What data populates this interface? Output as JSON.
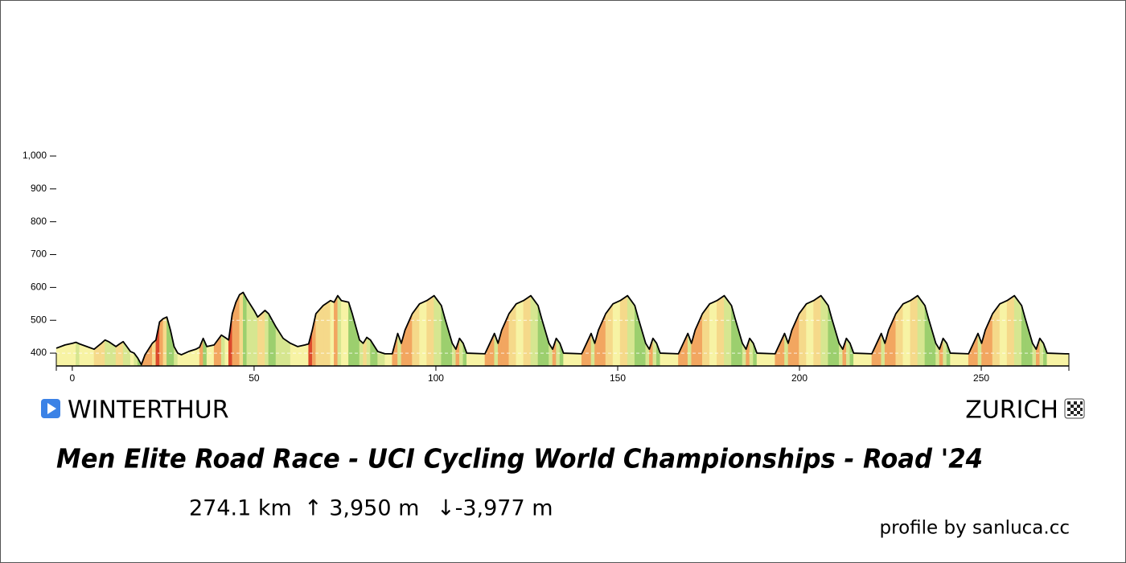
{
  "chart_data": {
    "type": "area",
    "title": "Men Elite Road Race - UCI Cycling World Championships - Road '24",
    "x": [
      -4.4,
      -2,
      0,
      1,
      2,
      4,
      6,
      8,
      9,
      10,
      12,
      13,
      14,
      15,
      16,
      17,
      18,
      19,
      20,
      22,
      23,
      24,
      25,
      26,
      27,
      28,
      29,
      30,
      32,
      34,
      35,
      36,
      37,
      39,
      41,
      42,
      43,
      44,
      45,
      46,
      47,
      48,
      50,
      51,
      52,
      53,
      54,
      56,
      58,
      60,
      62,
      64,
      65,
      66,
      67,
      69,
      71,
      72,
      73,
      74,
      76,
      77,
      79,
      80,
      81,
      82,
      84,
      86,
      88,
      89.5,
      90.5,
      91.5,
      93.5,
      95.5,
      97.5,
      99.5,
      100.5,
      101.5,
      102.5,
      104.5,
      105.5,
      106.5,
      107.5,
      108.5,
      113.5,
      116.1,
      117.1,
      118.1,
      120.1,
      122.1,
      124.1,
      126.1,
      127.1,
      128.1,
      129.1,
      131.1,
      132.1,
      133.1,
      134.1,
      135.1,
      140.1,
      142.7,
      143.7,
      144.7,
      146.7,
      148.7,
      150.7,
      152.7,
      153.7,
      154.7,
      155.7,
      157.7,
      158.7,
      159.7,
      160.7,
      161.7,
      166.7,
      169.3,
      170.3,
      171.3,
      173.3,
      175.3,
      177.3,
      179.3,
      180.3,
      181.3,
      182.3,
      184.3,
      185.3,
      186.3,
      187.3,
      188.3,
      193.3,
      195.9,
      196.9,
      197.9,
      199.9,
      201.9,
      203.9,
      205.9,
      206.9,
      207.9,
      208.9,
      210.9,
      211.9,
      212.9,
      213.9,
      214.9,
      219.9,
      222.5,
      223.5,
      224.5,
      226.5,
      228.5,
      230.5,
      232.5,
      233.5,
      234.5,
      235.5,
      237.5,
      238.5,
      239.5,
      240.5,
      241.5,
      246.5,
      249.1,
      250.1,
      251.1,
      253.1,
      255.1,
      257.1,
      259.1,
      260.1,
      261.1,
      262.1,
      264.1,
      265.1,
      266.1,
      267.1,
      268.1,
      273.1,
      274.1
    ],
    "values": [
      415,
      425,
      430,
      433,
      428,
      420,
      412,
      430,
      440,
      435,
      420,
      428,
      435,
      420,
      405,
      400,
      385,
      365,
      395,
      430,
      440,
      495,
      505,
      510,
      470,
      420,
      400,
      395,
      405,
      412,
      418,
      445,
      420,
      425,
      455,
      448,
      440,
      520,
      555,
      578,
      585,
      565,
      530,
      510,
      520,
      530,
      520,
      480,
      445,
      430,
      420,
      425,
      428,
      470,
      520,
      545,
      560,
      555,
      575,
      560,
      555,
      520,
      440,
      430,
      448,
      440,
      405,
      398,
      398,
      460,
      430,
      470,
      520,
      550,
      560,
      575,
      560,
      545,
      505,
      430,
      412,
      445,
      430,
      400,
      398,
      460,
      430,
      470,
      520,
      550,
      560,
      575,
      560,
      545,
      505,
      430,
      412,
      445,
      430,
      400,
      398,
      460,
      430,
      470,
      520,
      550,
      560,
      575,
      560,
      545,
      505,
      430,
      412,
      445,
      430,
      400,
      398,
      460,
      430,
      470,
      520,
      550,
      560,
      575,
      560,
      545,
      505,
      430,
      412,
      445,
      430,
      400,
      398,
      460,
      430,
      470,
      520,
      550,
      560,
      575,
      560,
      545,
      505,
      430,
      412,
      445,
      430,
      400,
      398,
      460,
      430,
      470,
      520,
      550,
      560,
      575,
      560,
      545,
      505,
      430,
      412,
      445,
      430,
      400,
      398,
      460,
      430,
      470,
      520,
      550,
      560,
      575,
      560,
      545,
      505,
      430,
      412,
      445,
      430,
      400,
      398,
      398
    ],
    "segment_colors": [
      "#f7f3a4",
      "#f7f3a4",
      "#f7f3a4",
      "#d6e690",
      "#f7f3a4",
      "#f7f3a4",
      "#f5d98a",
      "#f5d98a",
      "#d6e690",
      "#d6e690",
      "#f5d98a",
      "#f5d98a",
      "#d6e690",
      "#d6e690",
      "#f7f3a4",
      "#d6e690",
      "#9ccf6e",
      "#f2a660",
      "#f2a660",
      "#f5d98a",
      "#dc4a2c",
      "#f2a660",
      "#f5d98a",
      "#9ccf6e",
      "#9ccf6e",
      "#d6e690",
      "#f7f3a4",
      "#f7f3a4",
      "#f7f3a4",
      "#f7f3a4",
      "#f2a660",
      "#9ccf6e",
      "#f7f3a4",
      "#f2a660",
      "#d6e690",
      "#f7f3a4",
      "#dc4a2c",
      "#f2a660",
      "#f2a660",
      "#f5d98a",
      "#9ccf6e",
      "#d6e690",
      "#d6e690",
      "#f5d98a",
      "#f5d98a",
      "#d6e690",
      "#9ccf6e",
      "#d6e690",
      "#d6e690",
      "#f7f3a4",
      "#f7f3a4",
      "#f7f3a4",
      "#dc4a2c",
      "#f2a660",
      "#f5d98a",
      "#f5d98a",
      "#f7f3a4",
      "#f2a660",
      "#d6e690",
      "#f7f3a4",
      "#9ccf6e",
      "#9ccf6e",
      "#d6e690",
      "#f5d98a",
      "#d6e690",
      "#9ccf6e",
      "#d6e690",
      "#f7f3a4",
      "#f2a660",
      "#d6e690",
      "#f2a660",
      "#f2a660",
      "#f5d98a",
      "#f7f3a4",
      "#f5d98a",
      "#d6e690",
      "#d6e690",
      "#9ccf6e",
      "#9ccf6e",
      "#d6e690",
      "#f2a660",
      "#d6e690",
      "#9ccf6e",
      "#f7f3a4",
      "#f2a660",
      "#d6e690",
      "#f2a660",
      "#f2a660",
      "#f5d98a",
      "#f7f3a4",
      "#f5d98a",
      "#d6e690",
      "#d6e690",
      "#9ccf6e",
      "#9ccf6e",
      "#d6e690",
      "#f2a660",
      "#d6e690",
      "#9ccf6e",
      "#f7f3a4",
      "#f2a660",
      "#d6e690",
      "#f2a660",
      "#f2a660",
      "#f5d98a",
      "#f7f3a4",
      "#f5d98a",
      "#d6e690",
      "#d6e690",
      "#9ccf6e",
      "#9ccf6e",
      "#d6e690",
      "#f2a660",
      "#d6e690",
      "#9ccf6e",
      "#f7f3a4",
      "#f2a660",
      "#d6e690",
      "#f2a660",
      "#f2a660",
      "#f5d98a",
      "#f7f3a4",
      "#f5d98a",
      "#d6e690",
      "#d6e690",
      "#9ccf6e",
      "#9ccf6e",
      "#d6e690",
      "#f2a660",
      "#d6e690",
      "#9ccf6e",
      "#f7f3a4",
      "#f2a660",
      "#d6e690",
      "#f2a660",
      "#f2a660",
      "#f5d98a",
      "#f7f3a4",
      "#f5d98a",
      "#d6e690",
      "#d6e690",
      "#9ccf6e",
      "#9ccf6e",
      "#d6e690",
      "#f2a660",
      "#d6e690",
      "#9ccf6e",
      "#f7f3a4",
      "#f2a660",
      "#d6e690",
      "#f2a660",
      "#f2a660",
      "#f5d98a",
      "#f7f3a4",
      "#f5d98a",
      "#d6e690",
      "#d6e690",
      "#9ccf6e",
      "#9ccf6e",
      "#d6e690",
      "#f2a660",
      "#d6e690",
      "#9ccf6e",
      "#f7f3a4",
      "#f2a660",
      "#d6e690",
      "#f2a660",
      "#f2a660",
      "#f5d98a",
      "#f7f3a4",
      "#f5d98a",
      "#d6e690",
      "#d6e690",
      "#9ccf6e",
      "#9ccf6e",
      "#d6e690",
      "#f2a660",
      "#d6e690",
      "#9ccf6e",
      "#f7f3a4",
      "#f7f3a4"
    ],
    "line_color": "#000000",
    "grid_color": "#ffffff",
    "xlim": [
      -4.4,
      274.1
    ],
    "xticks": [
      0,
      50,
      100,
      150,
      200,
      250
    ],
    "ylim": [
      361,
      1000
    ],
    "yticks": [
      400,
      500,
      600,
      700,
      800,
      900,
      {
        "value": 1000,
        "label": "1,000"
      }
    ],
    "grid": true
  },
  "route": {
    "start": "WINTERTHUR",
    "finish": "ZURICH",
    "distance": "274.1 km",
    "ascent": "↑ 3,950 m",
    "descent": "↓-3,977 m"
  },
  "credit": "profile by sanluca.cc"
}
